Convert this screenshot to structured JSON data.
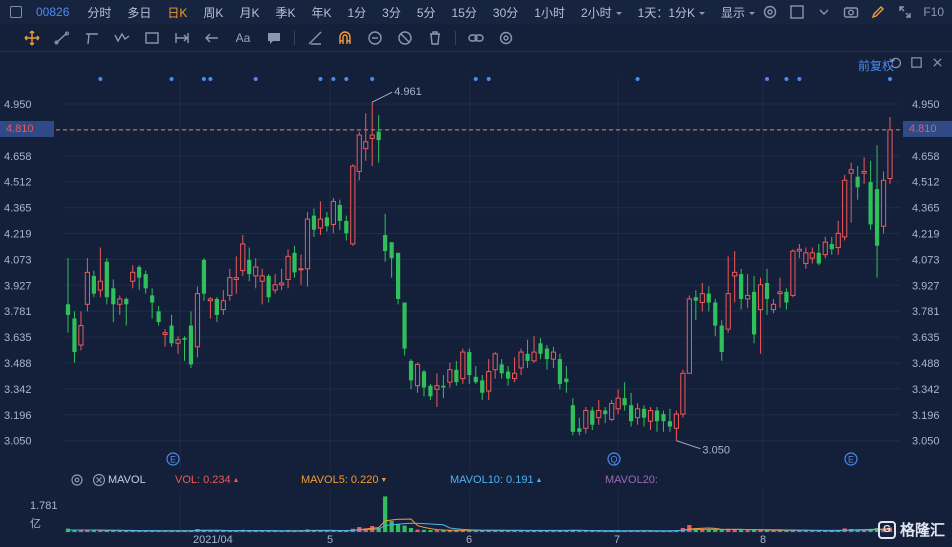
{
  "topbar": {
    "stock_code": "00826",
    "timeframes": [
      {
        "label": "分时",
        "active": false
      },
      {
        "label": "多日",
        "active": false
      },
      {
        "label": "日K",
        "active": true
      },
      {
        "label": "周K",
        "active": false
      },
      {
        "label": "月K",
        "active": false
      },
      {
        "label": "季K",
        "active": false
      },
      {
        "label": "年K",
        "active": false
      },
      {
        "label": "1分",
        "active": false
      },
      {
        "label": "3分",
        "active": false
      },
      {
        "label": "5分",
        "active": false
      },
      {
        "label": "15分",
        "active": false
      },
      {
        "label": "30分",
        "active": false
      },
      {
        "label": "1小时",
        "active": false
      },
      {
        "label": "2小时",
        "active": false,
        "dropdown": true
      },
      {
        "label": "1天：1分K",
        "active": false,
        "dropdown": true
      },
      {
        "label": "显示",
        "active": false,
        "dropdown": true
      }
    ],
    "right_text": "F10"
  },
  "toolbar": {
    "text_tool": "Aa"
  },
  "chart_header": {
    "adjust_label": "前复权"
  },
  "y_axis": {
    "ticks": [
      "4.950",
      "4.810",
      "4.658",
      "4.512",
      "4.365",
      "4.219",
      "4.073",
      "3.927",
      "3.781",
      "3.635",
      "3.488",
      "3.342",
      "3.196",
      "3.050"
    ],
    "current_price": "4.810"
  },
  "annotations": {
    "high_label": "4.961",
    "low_label": "3.050"
  },
  "event_markers": [
    "E",
    "Q",
    "E"
  ],
  "volume": {
    "indicator": "MAVOL",
    "vol": "VOL: 0.234",
    "mavol5": "MAVOL5: 0.220",
    "mavol10": "MAVOL10: 0.191",
    "mavol20": "MAVOL20:",
    "max_label": "1.781",
    "unit_label": "亿"
  },
  "x_axis": {
    "labels": [
      "2021/04",
      "5",
      "6",
      "7",
      "8"
    ]
  },
  "branding": {
    "logo_text": "格隆汇"
  },
  "colors": {
    "up": "#ef5858",
    "down": "#2fc05c",
    "background": "#14203a",
    "accent": "#f29b38",
    "link": "#4a8cf0"
  },
  "chart_data": {
    "type": "candlestick",
    "ylim": [
      3.0,
      5.0
    ],
    "candles": [
      {
        "o": 3.82,
        "c": 3.76,
        "h": 4.08,
        "l": 3.66
      },
      {
        "o": 3.74,
        "c": 3.55,
        "h": 3.78,
        "l": 3.49
      },
      {
        "o": 3.59,
        "c": 3.7,
        "h": 3.78,
        "l": 3.56
      },
      {
        "o": 3.82,
        "c": 4.0,
        "h": 4.08,
        "l": 3.78
      },
      {
        "o": 3.98,
        "c": 3.88,
        "h": 4.01,
        "l": 3.86
      },
      {
        "o": 3.9,
        "c": 3.95,
        "h": 4.14,
        "l": 3.86
      },
      {
        "o": 4.06,
        "c": 3.86,
        "h": 4.08,
        "l": 3.82
      },
      {
        "o": 3.91,
        "c": 3.82,
        "h": 3.96,
        "l": 3.72
      },
      {
        "o": 3.82,
        "c": 3.85,
        "h": 3.87,
        "l": 3.76
      },
      {
        "o": 3.85,
        "c": 3.82,
        "h": 3.86,
        "l": 3.7
      },
      {
        "o": 3.95,
        "c": 4.0,
        "h": 4.04,
        "l": 3.91
      },
      {
        "o": 4.03,
        "c": 3.97,
        "h": 4.04,
        "l": 3.9
      },
      {
        "o": 3.99,
        "c": 3.91,
        "h": 4.01,
        "l": 3.88
      },
      {
        "o": 3.87,
        "c": 3.83,
        "h": 3.91,
        "l": 3.74
      },
      {
        "o": 3.78,
        "c": 3.72,
        "h": 3.81,
        "l": 3.7
      },
      {
        "o": 3.65,
        "c": 3.66,
        "h": 3.68,
        "l": 3.58
      },
      {
        "o": 3.7,
        "c": 3.6,
        "h": 3.76,
        "l": 3.58
      },
      {
        "o": 3.6,
        "c": 3.62,
        "h": 3.64,
        "l": 3.54
      },
      {
        "o": 3.63,
        "c": 3.62,
        "h": 3.64,
        "l": 3.5
      },
      {
        "o": 3.7,
        "c": 3.48,
        "h": 3.78,
        "l": 3.46
      },
      {
        "o": 3.58,
        "c": 3.88,
        "h": 3.92,
        "l": 3.52
      },
      {
        "o": 4.07,
        "c": 3.88,
        "h": 4.08,
        "l": 3.84
      },
      {
        "o": 3.84,
        "c": 3.85,
        "h": 3.86,
        "l": 3.74
      },
      {
        "o": 3.85,
        "c": 3.76,
        "h": 3.86,
        "l": 3.72
      },
      {
        "o": 3.79,
        "c": 3.84,
        "h": 3.9,
        "l": 3.76
      },
      {
        "o": 3.87,
        "c": 3.97,
        "h": 4.02,
        "l": 3.84
      },
      {
        "o": 3.96,
        "c": 3.97,
        "h": 4.09,
        "l": 3.88
      },
      {
        "o": 4.01,
        "c": 4.16,
        "h": 4.21,
        "l": 3.98
      },
      {
        "o": 4.07,
        "c": 3.99,
        "h": 4.14,
        "l": 3.95
      },
      {
        "o": 3.98,
        "c": 4.03,
        "h": 4.08,
        "l": 3.91
      },
      {
        "o": 3.95,
        "c": 3.98,
        "h": 4.02,
        "l": 3.82
      },
      {
        "o": 3.98,
        "c": 3.86,
        "h": 3.99,
        "l": 3.83
      },
      {
        "o": 3.9,
        "c": 3.93,
        "h": 3.99,
        "l": 3.88
      },
      {
        "o": 3.93,
        "c": 3.94,
        "h": 4.02,
        "l": 3.9
      },
      {
        "o": 3.96,
        "c": 4.09,
        "h": 4.13,
        "l": 3.91
      },
      {
        "o": 4.11,
        "c": 4.0,
        "h": 4.15,
        "l": 3.97
      },
      {
        "o": 4.02,
        "c": 4.02,
        "h": 4.1,
        "l": 3.93
      },
      {
        "o": 4.02,
        "c": 4.3,
        "h": 4.34,
        "l": 3.92
      },
      {
        "o": 4.32,
        "c": 4.24,
        "h": 4.36,
        "l": 4.2
      },
      {
        "o": 4.25,
        "c": 4.3,
        "h": 4.4,
        "l": 4.21
      },
      {
        "o": 4.31,
        "c": 4.26,
        "h": 4.34,
        "l": 4.23
      },
      {
        "o": 4.27,
        "c": 4.4,
        "h": 4.42,
        "l": 4.22
      },
      {
        "o": 4.38,
        "c": 4.29,
        "h": 4.41,
        "l": 4.24
      },
      {
        "o": 4.29,
        "c": 4.22,
        "h": 4.32,
        "l": 4.18
      },
      {
        "o": 4.16,
        "c": 4.6,
        "h": 4.61,
        "l": 4.15
      },
      {
        "o": 4.57,
        "c": 4.78,
        "h": 4.8,
        "l": 4.52
      },
      {
        "o": 4.7,
        "c": 4.74,
        "h": 4.9,
        "l": 4.63
      },
      {
        "o": 4.76,
        "c": 4.78,
        "h": 4.96,
        "l": 4.6
      },
      {
        "o": 4.8,
        "c": 4.75,
        "h": 4.89,
        "l": 4.62
      },
      {
        "o": 4.21,
        "c": 4.12,
        "h": 4.33,
        "l": 4.06
      },
      {
        "o": 4.17,
        "c": 4.08,
        "h": 4.17,
        "l": 3.97
      },
      {
        "o": 4.11,
        "c": 3.85,
        "h": 4.11,
        "l": 3.82
      },
      {
        "o": 3.83,
        "c": 3.57,
        "h": 3.83,
        "l": 3.53
      },
      {
        "o": 3.5,
        "c": 3.39,
        "h": 3.51,
        "l": 3.34
      },
      {
        "o": 3.36,
        "c": 3.48,
        "h": 3.49,
        "l": 3.32
      },
      {
        "o": 3.44,
        "c": 3.35,
        "h": 3.45,
        "l": 3.3
      },
      {
        "o": 3.36,
        "c": 3.3,
        "h": 3.37,
        "l": 3.28
      },
      {
        "o": 3.34,
        "c": 3.36,
        "h": 3.43,
        "l": 3.24
      },
      {
        "o": 3.36,
        "c": 3.35,
        "h": 3.42,
        "l": 3.29
      },
      {
        "o": 3.38,
        "c": 3.45,
        "h": 3.49,
        "l": 3.35
      },
      {
        "o": 3.45,
        "c": 3.38,
        "h": 3.5,
        "l": 3.36
      },
      {
        "o": 3.4,
        "c": 3.55,
        "h": 3.57,
        "l": 3.37
      },
      {
        "o": 3.55,
        "c": 3.42,
        "h": 3.57,
        "l": 3.37
      },
      {
        "o": 3.41,
        "c": 3.38,
        "h": 3.47,
        "l": 3.37
      },
      {
        "o": 3.39,
        "c": 3.32,
        "h": 3.42,
        "l": 3.28
      },
      {
        "o": 3.33,
        "c": 3.44,
        "h": 3.51,
        "l": 3.28
      },
      {
        "o": 3.45,
        "c": 3.54,
        "h": 3.55,
        "l": 3.4
      },
      {
        "o": 3.48,
        "c": 3.43,
        "h": 3.51,
        "l": 3.4
      },
      {
        "o": 3.44,
        "c": 3.4,
        "h": 3.47,
        "l": 3.36
      },
      {
        "o": 3.4,
        "c": 3.43,
        "h": 3.52,
        "l": 3.38
      },
      {
        "o": 3.46,
        "c": 3.55,
        "h": 3.57,
        "l": 3.42
      },
      {
        "o": 3.54,
        "c": 3.5,
        "h": 3.62,
        "l": 3.46
      },
      {
        "o": 3.5,
        "c": 3.55,
        "h": 3.64,
        "l": 3.49
      },
      {
        "o": 3.6,
        "c": 3.54,
        "h": 3.63,
        "l": 3.51
      },
      {
        "o": 3.57,
        "c": 3.51,
        "h": 3.59,
        "l": 3.45
      },
      {
        "o": 3.51,
        "c": 3.55,
        "h": 3.58,
        "l": 3.46
      },
      {
        "o": 3.51,
        "c": 3.37,
        "h": 3.54,
        "l": 3.34
      },
      {
        "o": 3.4,
        "c": 3.38,
        "h": 3.47,
        "l": 3.32
      },
      {
        "o": 3.25,
        "c": 3.1,
        "h": 3.29,
        "l": 3.08
      },
      {
        "o": 3.12,
        "c": 3.1,
        "h": 3.18,
        "l": 3.08
      },
      {
        "o": 3.12,
        "c": 3.22,
        "h": 3.24,
        "l": 3.09
      },
      {
        "o": 3.22,
        "c": 3.14,
        "h": 3.24,
        "l": 3.11
      },
      {
        "o": 3.18,
        "c": 3.22,
        "h": 3.28,
        "l": 3.14
      },
      {
        "o": 3.22,
        "c": 3.2,
        "h": 3.24,
        "l": 3.15
      },
      {
        "o": 3.17,
        "c": 3.26,
        "h": 3.28,
        "l": 3.16
      },
      {
        "o": 3.23,
        "c": 3.29,
        "h": 3.34,
        "l": 3.2
      },
      {
        "o": 3.29,
        "c": 3.25,
        "h": 3.38,
        "l": 3.22
      },
      {
        "o": 3.25,
        "c": 3.16,
        "h": 3.32,
        "l": 3.13
      },
      {
        "o": 3.18,
        "c": 3.23,
        "h": 3.26,
        "l": 3.14
      },
      {
        "o": 3.23,
        "c": 3.18,
        "h": 3.25,
        "l": 3.13
      },
      {
        "o": 3.16,
        "c": 3.22,
        "h": 3.24,
        "l": 3.11
      },
      {
        "o": 3.22,
        "c": 3.16,
        "h": 3.24,
        "l": 3.1
      },
      {
        "o": 3.2,
        "c": 3.16,
        "h": 3.22,
        "l": 3.1
      },
      {
        "o": 3.16,
        "c": 3.13,
        "h": 3.23,
        "l": 3.1
      },
      {
        "o": 3.12,
        "c": 3.2,
        "h": 3.22,
        "l": 3.05
      },
      {
        "o": 3.2,
        "c": 3.43,
        "h": 3.45,
        "l": 3.18
      },
      {
        "o": 3.43,
        "c": 3.85,
        "h": 3.87,
        "l": 3.43
      },
      {
        "o": 3.86,
        "c": 3.84,
        "h": 3.9,
        "l": 3.73
      },
      {
        "o": 3.83,
        "c": 3.88,
        "h": 3.94,
        "l": 3.78
      },
      {
        "o": 3.88,
        "c": 3.83,
        "h": 3.92,
        "l": 3.78
      },
      {
        "o": 3.83,
        "c": 3.7,
        "h": 3.85,
        "l": 3.64
      },
      {
        "o": 3.7,
        "c": 3.55,
        "h": 3.73,
        "l": 3.5
      },
      {
        "o": 3.68,
        "c": 3.88,
        "h": 4.09,
        "l": 3.66
      },
      {
        "o": 3.98,
        "c": 4.0,
        "h": 4.12,
        "l": 3.83
      },
      {
        "o": 3.99,
        "c": 3.85,
        "h": 4.02,
        "l": 3.79
      },
      {
        "o": 3.85,
        "c": 3.87,
        "h": 3.99,
        "l": 3.8
      },
      {
        "o": 3.89,
        "c": 3.65,
        "h": 3.98,
        "l": 3.6
      },
      {
        "o": 3.79,
        "c": 3.93,
        "h": 3.97,
        "l": 3.54
      },
      {
        "o": 3.94,
        "c": 3.85,
        "h": 4.02,
        "l": 3.76
      },
      {
        "o": 3.79,
        "c": 3.82,
        "h": 3.85,
        "l": 3.77
      },
      {
        "o": 3.88,
        "c": 3.89,
        "h": 3.97,
        "l": 3.8
      },
      {
        "o": 3.89,
        "c": 3.83,
        "h": 3.91,
        "l": 3.79
      },
      {
        "o": 3.87,
        "c": 4.12,
        "h": 4.13,
        "l": 3.86
      },
      {
        "o": 4.12,
        "c": 4.13,
        "h": 4.16,
        "l": 4.08
      },
      {
        "o": 4.05,
        "c": 4.11,
        "h": 4.14,
        "l": 4.02
      },
      {
        "o": 4.08,
        "c": 4.11,
        "h": 4.14,
        "l": 4.05
      },
      {
        "o": 4.11,
        "c": 4.05,
        "h": 4.16,
        "l": 4.04
      },
      {
        "o": 4.1,
        "c": 4.17,
        "h": 4.2,
        "l": 4.08
      },
      {
        "o": 4.16,
        "c": 4.13,
        "h": 4.2,
        "l": 4.1
      },
      {
        "o": 4.14,
        "c": 4.22,
        "h": 4.29,
        "l": 4.1
      },
      {
        "o": 4.2,
        "c": 4.52,
        "h": 4.55,
        "l": 4.18
      },
      {
        "o": 4.56,
        "c": 4.58,
        "h": 4.62,
        "l": 4.28
      },
      {
        "o": 4.54,
        "c": 4.48,
        "h": 4.6,
        "l": 4.41
      },
      {
        "o": 4.56,
        "c": 4.57,
        "h": 4.65,
        "l": 4.5
      },
      {
        "o": 4.51,
        "c": 4.27,
        "h": 4.63,
        "l": 4.24
      },
      {
        "o": 4.47,
        "c": 4.15,
        "h": 4.72,
        "l": 3.97
      },
      {
        "o": 4.26,
        "c": 4.52,
        "h": 4.57,
        "l": 4.22
      },
      {
        "o": 4.53,
        "c": 4.81,
        "h": 4.88,
        "l": 4.5
      }
    ],
    "volume": [
      0.17,
      0.12,
      0.09,
      0.11,
      0.08,
      0.07,
      0.1,
      0.06,
      0.05,
      0.05,
      0.06,
      0.07,
      0.05,
      0.07,
      0.05,
      0.05,
      0.07,
      0.05,
      0.04,
      0.08,
      0.15,
      0.1,
      0.06,
      0.05,
      0.05,
      0.07,
      0.06,
      0.11,
      0.06,
      0.05,
      0.06,
      0.05,
      0.04,
      0.05,
      0.09,
      0.06,
      0.05,
      0.13,
      0.08,
      0.07,
      0.06,
      0.08,
      0.06,
      0.06,
      0.16,
      0.25,
      0.18,
      0.3,
      0.2,
      1.78,
      0.55,
      0.4,
      0.32,
      0.2,
      0.12,
      0.11,
      0.1,
      0.09,
      0.08,
      0.09,
      0.08,
      0.1,
      0.09,
      0.07,
      0.07,
      0.1,
      0.09,
      0.07,
      0.06,
      0.07,
      0.08,
      0.07,
      0.08,
      0.07,
      0.06,
      0.07,
      0.08,
      0.07,
      0.11,
      0.06,
      0.06,
      0.05,
      0.05,
      0.04,
      0.05,
      0.06,
      0.07,
      0.06,
      0.05,
      0.05,
      0.05,
      0.06,
      0.05,
      0.05,
      0.08,
      0.2,
      0.35,
      0.18,
      0.14,
      0.12,
      0.11,
      0.1,
      0.16,
      0.14,
      0.1,
      0.09,
      0.12,
      0.11,
      0.08,
      0.07,
      0.08,
      0.07,
      0.13,
      0.08,
      0.07,
      0.06,
      0.07,
      0.06,
      0.06,
      0.07,
      0.18,
      0.15,
      0.1,
      0.11,
      0.12,
      0.2,
      0.16,
      0.23
    ],
    "mavol5": [
      0.1,
      0.1,
      0.1,
      0.1,
      0.1,
      0.09,
      0.08,
      0.08,
      0.08,
      0.07,
      0.06,
      0.06,
      0.06,
      0.06,
      0.06,
      0.06,
      0.06,
      0.06,
      0.06,
      0.06,
      0.08,
      0.09,
      0.09,
      0.09,
      0.08,
      0.07,
      0.06,
      0.07,
      0.07,
      0.07,
      0.07,
      0.07,
      0.06,
      0.05,
      0.06,
      0.06,
      0.06,
      0.07,
      0.08,
      0.08,
      0.08,
      0.08,
      0.07,
      0.07,
      0.08,
      0.12,
      0.15,
      0.19,
      0.22,
      0.55,
      0.6,
      0.64,
      0.64,
      0.65,
      0.32,
      0.23,
      0.17,
      0.12,
      0.1,
      0.09,
      0.09,
      0.09,
      0.09,
      0.09,
      0.08,
      0.09,
      0.08,
      0.08,
      0.08,
      0.08,
      0.08,
      0.07,
      0.07,
      0.07,
      0.07,
      0.07,
      0.07,
      0.07,
      0.08,
      0.08,
      0.08,
      0.07,
      0.07,
      0.05,
      0.05,
      0.05,
      0.05,
      0.06,
      0.06,
      0.06,
      0.06,
      0.05,
      0.05,
      0.05,
      0.06,
      0.09,
      0.15,
      0.17,
      0.19,
      0.2,
      0.18,
      0.13,
      0.13,
      0.13,
      0.13,
      0.12,
      0.12,
      0.11,
      0.1,
      0.09,
      0.09,
      0.08,
      0.09,
      0.09,
      0.09,
      0.08,
      0.08,
      0.07,
      0.06,
      0.06,
      0.09,
      0.1,
      0.11,
      0.12,
      0.13,
      0.14,
      0.15,
      0.18
    ],
    "mavol10": [
      0.1,
      0.1,
      0.1,
      0.1,
      0.1,
      0.1,
      0.09,
      0.09,
      0.09,
      0.08,
      0.08,
      0.07,
      0.07,
      0.07,
      0.06,
      0.06,
      0.06,
      0.06,
      0.06,
      0.06,
      0.07,
      0.07,
      0.07,
      0.07,
      0.07,
      0.07,
      0.07,
      0.07,
      0.07,
      0.07,
      0.07,
      0.07,
      0.07,
      0.06,
      0.06,
      0.06,
      0.06,
      0.06,
      0.07,
      0.07,
      0.07,
      0.07,
      0.07,
      0.07,
      0.08,
      0.1,
      0.11,
      0.13,
      0.15,
      0.32,
      0.36,
      0.39,
      0.42,
      0.44,
      0.43,
      0.42,
      0.4,
      0.38,
      0.36,
      0.2,
      0.16,
      0.13,
      0.11,
      0.1,
      0.09,
      0.09,
      0.09,
      0.09,
      0.08,
      0.08,
      0.08,
      0.08,
      0.08,
      0.08,
      0.08,
      0.08,
      0.08,
      0.08,
      0.08,
      0.08,
      0.07,
      0.07,
      0.07,
      0.07,
      0.07,
      0.07,
      0.06,
      0.06,
      0.06,
      0.06,
      0.06,
      0.06,
      0.06,
      0.06,
      0.07,
      0.09,
      0.11,
      0.12,
      0.13,
      0.13,
      0.13,
      0.12,
      0.12,
      0.13,
      0.13,
      0.12,
      0.12,
      0.12,
      0.12,
      0.11,
      0.11,
      0.1,
      0.1,
      0.09,
      0.09,
      0.08,
      0.08,
      0.08,
      0.08,
      0.08,
      0.09,
      0.09,
      0.09,
      0.1,
      0.1,
      0.11,
      0.12,
      0.13
    ]
  }
}
